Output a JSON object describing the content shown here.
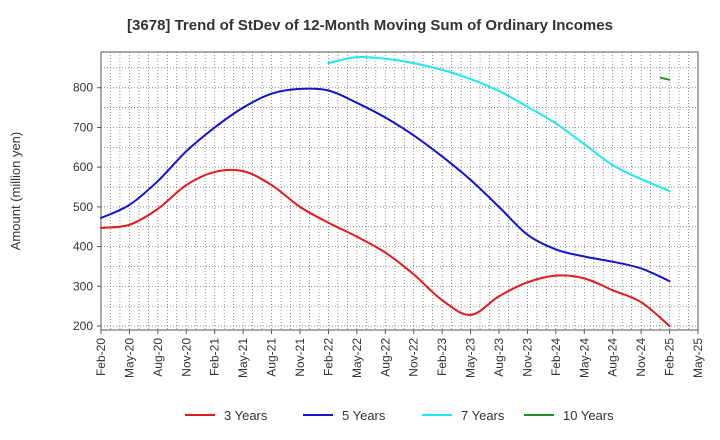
{
  "chart_data": {
    "type": "line",
    "title": "[3678]  Trend of StDev of 12-Month Moving Sum of Ordinary Incomes",
    "xlabel": "",
    "ylabel": "Amount (million yen)",
    "ylim": [
      190,
      890
    ],
    "yticks": [
      200,
      300,
      400,
      500,
      600,
      700,
      800
    ],
    "grid": true,
    "legend_position": "bottom",
    "categories": [
      "Feb-20",
      "May-20",
      "Aug-20",
      "Nov-20",
      "Feb-21",
      "May-21",
      "Aug-21",
      "Nov-21",
      "Feb-22",
      "May-22",
      "Aug-22",
      "Nov-22",
      "Feb-23",
      "May-23",
      "Aug-23",
      "Nov-23",
      "Feb-24",
      "May-24",
      "Aug-24",
      "Nov-24",
      "Feb-25",
      "May-25"
    ],
    "series": [
      {
        "name": "3 Years",
        "color": "#e31a1c",
        "values": [
          447,
          455,
          495,
          555,
          588,
          590,
          555,
          500,
          460,
          425,
          385,
          330,
          265,
          228,
          275,
          310,
          327,
          320,
          290,
          260,
          200,
          null
        ]
      },
      {
        "name": "5 Years",
        "color": "#1414cc",
        "values": [
          472,
          505,
          565,
          640,
          700,
          750,
          785,
          797,
          793,
          762,
          725,
          680,
          627,
          568,
          500,
          430,
          393,
          375,
          362,
          345,
          313,
          null
        ]
      },
      {
        "name": "7 Years",
        "color": "#1fe8f0",
        "values": [
          null,
          null,
          null,
          null,
          null,
          null,
          null,
          null,
          862,
          877,
          873,
          862,
          845,
          822,
          792,
          752,
          710,
          658,
          605,
          570,
          540,
          null
        ]
      },
      {
        "name": "10 Years",
        "color": "#228b22",
        "values": [
          null,
          null,
          null,
          null,
          null,
          null,
          null,
          null,
          null,
          null,
          null,
          null,
          null,
          null,
          null,
          null,
          null,
          null,
          null,
          null,
          820,
          null
        ],
        "segment": [
          [
            19.7,
            825
          ],
          [
            20.0,
            820
          ]
        ]
      }
    ]
  }
}
